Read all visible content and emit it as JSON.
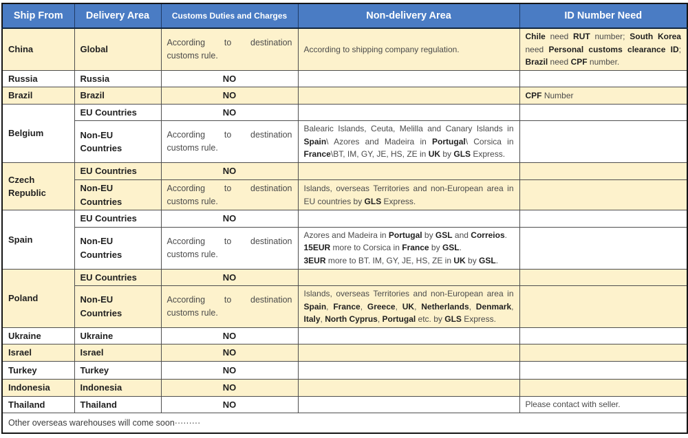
{
  "colors": {
    "header_bg": "#4a7cc4",
    "header_text": "#ffffff",
    "row_cream": "#fdf2cc",
    "row_white": "#ffffff",
    "border": "#4d4d4d"
  },
  "columns": [
    "Ship From",
    "Delivery Area",
    "Customs Duties and Charges",
    "Non-delivery Area",
    "ID Number Need"
  ],
  "groups": [
    {
      "name": "China",
      "rows": [
        {
          "area": "Global",
          "customs": "According to destination customs rule.",
          "nd": [
            {
              "t": "According to shipping company regulation."
            }
          ],
          "id": [
            {
              "t": "Chile",
              "b": 1
            },
            {
              "t": " need "
            },
            {
              "t": "RUT",
              "b": 1
            },
            {
              "t": " number; "
            },
            {
              "t": "South Korea",
              "b": 1
            },
            {
              "t": " need "
            },
            {
              "t": "Personal customs clearance ID",
              "b": 1
            },
            {
              "t": "; "
            },
            {
              "t": "Brazil",
              "b": 1
            },
            {
              "t": " need "
            },
            {
              "t": "CPF",
              "b": 1
            },
            {
              "t": " number."
            }
          ]
        }
      ]
    },
    {
      "name": "Russia",
      "rows": [
        {
          "area": "Russia",
          "customs": "NO"
        }
      ]
    },
    {
      "name": "Brazil",
      "rows": [
        {
          "area": "Brazil",
          "customs": "NO",
          "id": [
            {
              "t": "CPF",
              "b": 1
            },
            {
              "t": " Number"
            }
          ]
        }
      ]
    },
    {
      "name": "Belgium",
      "rows": [
        {
          "area": "EU Countries",
          "customs": "NO"
        },
        {
          "area": "Non-EU Countries",
          "customs": "According to destination customs rule.",
          "nd": [
            {
              "t": "Balearic Islands, Ceuta, Melilla and Canary Islands in "
            },
            {
              "t": "Spain",
              "b": 1
            },
            {
              "t": "\\ Azores and Madeira in "
            },
            {
              "t": "Portugal",
              "b": 1
            },
            {
              "t": "\\ Corsica in "
            },
            {
              "t": "France",
              "b": 1
            },
            {
              "t": "\\BT, IM, GY, JE, HS, ZE in "
            },
            {
              "t": "UK",
              "b": 1
            },
            {
              "t": " by "
            },
            {
              "t": "GLS",
              "b": 1
            },
            {
              "t": " Express."
            }
          ]
        }
      ]
    },
    {
      "name": "Czech Republic",
      "rows": [
        {
          "area": "EU Countries",
          "customs": "NO"
        },
        {
          "area": "Non-EU Countries",
          "customs": "According to destination customs rule.",
          "nd": [
            {
              "t": "Islands, overseas Territories and non-European area in EU countries by "
            },
            {
              "t": "GLS",
              "b": 1
            },
            {
              "t": " Express."
            }
          ]
        }
      ]
    },
    {
      "name": "Spain",
      "rows": [
        {
          "area": "EU Countries",
          "customs": "NO"
        },
        {
          "area": "Non-EU Countries",
          "customs": "According to destination customs rule.",
          "nd": [
            {
              "t": "Azores and Madeira in "
            },
            {
              "t": "Portugal",
              "b": 1
            },
            {
              "t": " by "
            },
            {
              "t": "GSL",
              "b": 1
            },
            {
              "t": " and "
            },
            {
              "t": "Correios",
              "b": 1
            },
            {
              "t": "."
            },
            {
              "br": 1
            },
            {
              "t": "15EUR",
              "b": 1
            },
            {
              "t": " more to Corsica in "
            },
            {
              "t": "France",
              "b": 1
            },
            {
              "t": " by "
            },
            {
              "t": "GSL",
              "b": 1
            },
            {
              "t": "."
            },
            {
              "br": 1
            },
            {
              "t": "3EUR",
              "b": 1
            },
            {
              "t": " more to BT. IM, GY, JE, HS, ZE in "
            },
            {
              "t": "UK",
              "b": 1
            },
            {
              "t": " by "
            },
            {
              "t": "GSL",
              "b": 1
            },
            {
              "t": "."
            }
          ]
        }
      ]
    },
    {
      "name": "Poland",
      "rows": [
        {
          "area": "EU Countries",
          "customs": "NO"
        },
        {
          "area": "Non-EU Countries",
          "customs": "According to destination customs rule.",
          "nd": [
            {
              "t": "Islands, overseas Territories and non-European area in "
            },
            {
              "t": "Spain",
              "b": 1
            },
            {
              "t": ", "
            },
            {
              "t": "France",
              "b": 1
            },
            {
              "t": ", "
            },
            {
              "t": "Greece",
              "b": 1
            },
            {
              "t": ", "
            },
            {
              "t": "UK",
              "b": 1
            },
            {
              "t": ", "
            },
            {
              "t": "Netherlands",
              "b": 1
            },
            {
              "t": ", "
            },
            {
              "t": "Denmark",
              "b": 1
            },
            {
              "t": ", "
            },
            {
              "t": "Italy",
              "b": 1
            },
            {
              "t": ", "
            },
            {
              "t": "North Cyprus",
              "b": 1
            },
            {
              "t": ", "
            },
            {
              "t": "Portugal",
              "b": 1
            },
            {
              "t": " etc. by "
            },
            {
              "t": "GLS",
              "b": 1
            },
            {
              "t": " Express."
            }
          ]
        }
      ]
    },
    {
      "name": "Ukraine",
      "rows": [
        {
          "area": "Ukraine",
          "customs": "NO"
        }
      ]
    },
    {
      "name": "Israel",
      "rows": [
        {
          "area": "Israel",
          "customs": "NO"
        }
      ]
    },
    {
      "name": "Turkey",
      "rows": [
        {
          "area": "Turkey",
          "customs": "NO"
        }
      ]
    },
    {
      "name": "Indonesia",
      "rows": [
        {
          "area": "Indonesia",
          "customs": "NO"
        }
      ]
    },
    {
      "name": "Thailand",
      "rows": [
        {
          "area": "Thailand",
          "customs": "NO",
          "id": [
            {
              "t": "Please contact with seller."
            }
          ]
        }
      ]
    }
  ],
  "footer": {
    "note": "Other overseas warehouses will come soon·········"
  }
}
